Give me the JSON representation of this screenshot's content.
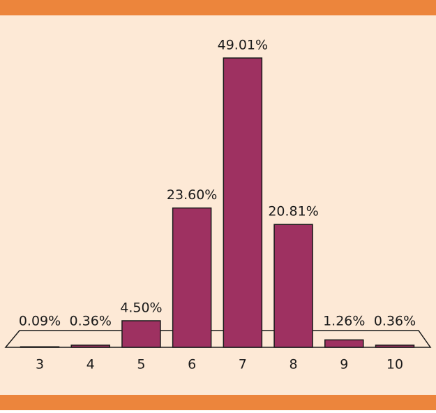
{
  "chart_data": {
    "type": "bar",
    "categories": [
      "3",
      "4",
      "5",
      "6",
      "7",
      "8",
      "9",
      "10"
    ],
    "values": [
      0.09,
      0.36,
      4.5,
      23.6,
      49.01,
      20.81,
      1.26,
      0.36
    ],
    "value_labels": [
      "0.09%",
      "0.36%",
      "4.50%",
      "23.60%",
      "49.01%",
      "20.81%",
      "1.26%",
      "0.36%"
    ],
    "color": "#9e3161"
  }
}
